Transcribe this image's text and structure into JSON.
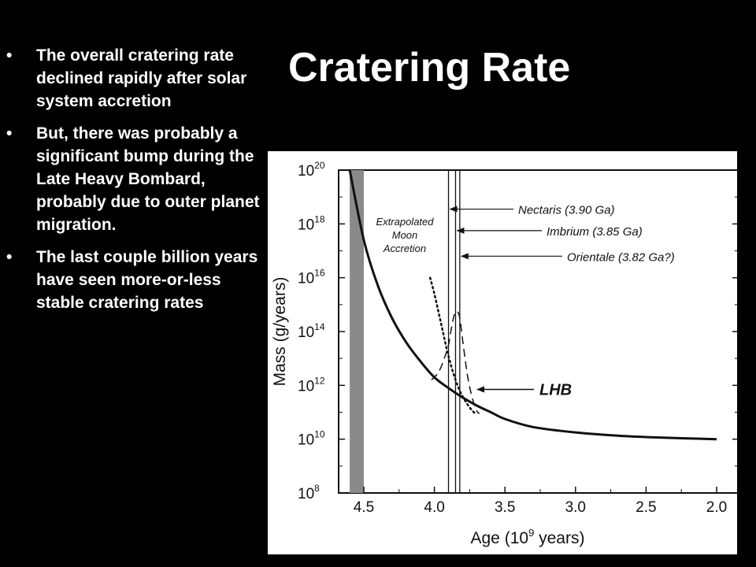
{
  "slide": {
    "title": "Cratering Rate",
    "bullets": [
      "The overall cratering rate  declined rapidly after solar system accretion",
      "But, there was probably a significant bump during the Late Heavy Bombard, probably due to outer planet migration.",
      "The last couple billion years have seen more-or-less stable cratering rates"
    ]
  },
  "chart_data": {
    "type": "line",
    "xlabel_base": "Age (10",
    "xlabel_sup": "9",
    "xlabel_tail": " years)",
    "ylabel": "Mass (g/years)",
    "x_reversed": true,
    "xlim": [
      4.7,
      2.0
    ],
    "x_ticks": [
      "4.5",
      "4.0",
      "3.5",
      "3.0",
      "2.5",
      "2.0"
    ],
    "ylim_log10": [
      8,
      20
    ],
    "y_tick_base": "10",
    "y_tick_exponents": [
      "20",
      "18",
      "16",
      "14",
      "12",
      "10",
      "8"
    ],
    "grid": false,
    "series": [
      {
        "style": "solid",
        "x": [
          4.6,
          4.5,
          4.4,
          4.3,
          4.2,
          4.1,
          4.0,
          3.9,
          3.8,
          3.7,
          3.6,
          3.5,
          3.3,
          3.0,
          2.7,
          2.4,
          2.0
        ],
        "y_log10": [
          20.0,
          17.4,
          15.7,
          14.5,
          13.6,
          12.9,
          12.3,
          11.9,
          11.55,
          11.25,
          11.0,
          10.75,
          10.45,
          10.25,
          10.13,
          10.06,
          10.0
        ]
      },
      {
        "name": "Extrapolated Moon Accretion",
        "style": "dotted",
        "x": [
          4.03,
          4.0,
          3.97,
          3.94,
          3.91,
          3.88,
          3.85,
          3.82,
          3.79,
          3.76,
          3.73,
          3.71
        ],
        "y_log10": [
          16.0,
          15.4,
          14.7,
          14.0,
          13.3,
          12.7,
          12.2,
          11.8,
          11.5,
          11.25,
          11.05,
          10.95
        ]
      },
      {
        "name": "LHB",
        "style": "dashed",
        "x": [
          4.02,
          3.97,
          3.93,
          3.9,
          3.88,
          3.86,
          3.84,
          3.82,
          3.8,
          3.78,
          3.76,
          3.73,
          3.7,
          3.68
        ],
        "y_log10": [
          12.2,
          12.5,
          13.0,
          13.5,
          14.1,
          14.6,
          14.75,
          14.5,
          13.7,
          12.9,
          12.2,
          11.5,
          11.05,
          10.95
        ]
      }
    ],
    "vertical_lines": [
      {
        "label": "Nectaris (3.90 Ga)",
        "x": 3.9
      },
      {
        "label": "Imbrium (3.85 Ga)",
        "x": 3.85
      },
      {
        "label": "Orientale (3.82 Ga?)",
        "x": 3.82
      }
    ],
    "shaded_band": {
      "x_from": 4.6,
      "x_to": 4.5
    },
    "annotations": {
      "moon_lines": [
        "Extrapolated",
        "Moon",
        "Accretion"
      ],
      "lhb_label": "LHB"
    }
  }
}
